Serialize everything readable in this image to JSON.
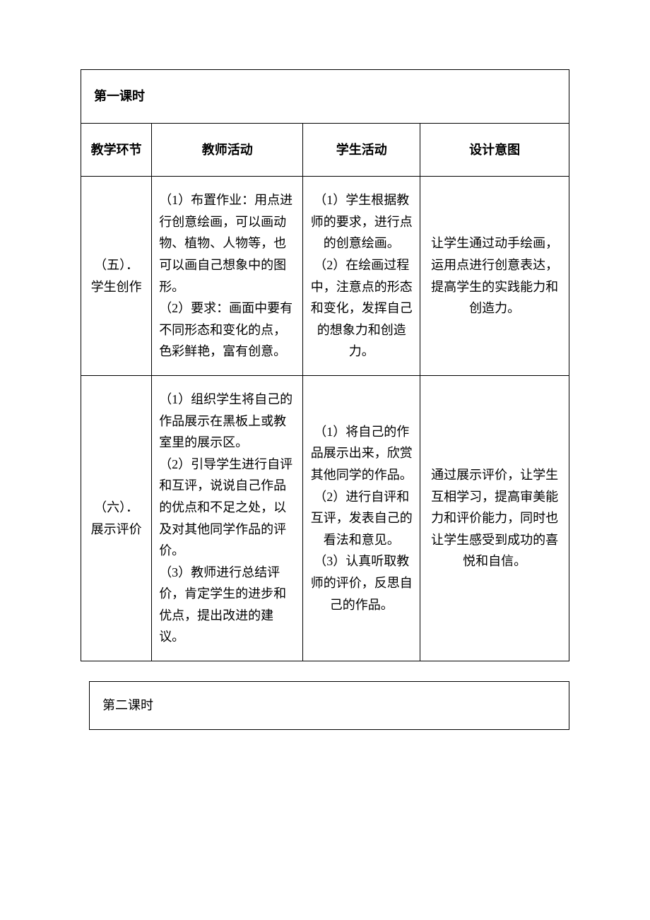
{
  "lesson1_title": "第一课时",
  "headers": {
    "col1": "教学环节",
    "col2": "教师活动",
    "col3": "学生活动",
    "col4": "设计意图"
  },
  "rows": [
    {
      "stage": "（五）．学生创作",
      "teacher": "（1）布置作业：用点进行创意绘画，可以画动物、植物、人物等，也可以画自己想象中的图形。\n（2）要求：画面中要有不同形态和变化的点，色彩鲜艳，富有创意。",
      "student": "（1）学生根据教师的要求，进行点的创意绘画。\n（2）在绘画过程中，注意点的形态和变化，发挥自己的想象力和创造力。",
      "intent": "让学生通过动手绘画，运用点进行创意表达，提高学生的实践能力和创造力。"
    },
    {
      "stage": "（六）．展示评价",
      "teacher": "（1）组织学生将自己的作品展示在黑板上或教室里的展示区。\n（2）引导学生进行自评和互评，说说自己作品的优点和不足之处，以及对其他同学作品的评价。\n（3）教师进行总结评价，肯定学生的进步和优点，提出改进的建议。",
      "student": "（1）将自己的作品展示出来，欣赏其他同学的作品。\n（2）进行自评和互评，发表自己的看法和意见。\n（3）认真听取教师的评价，反思自己的作品。",
      "intent": "通过展示评价，让学生互相学习，提高审美能力和评价能力，同时也让学生感受到成功的喜悦和自信。"
    }
  ],
  "lesson2_title": "第二课时"
}
